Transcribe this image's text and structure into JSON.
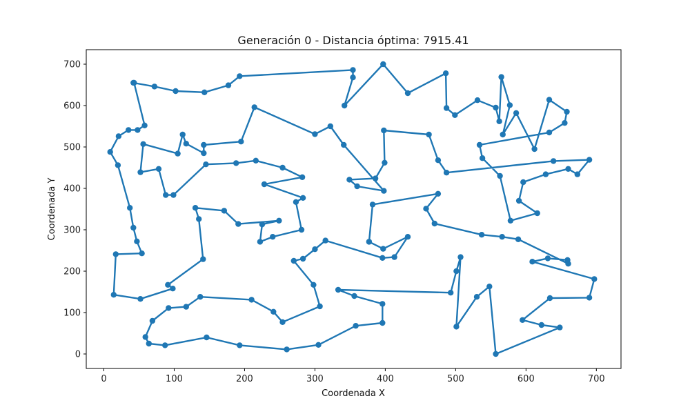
{
  "chart_data": {
    "type": "line",
    "title": "Generación 0 - Distancia óptima: 7915.41",
    "xlabel": "Coordenada X",
    "ylabel": "Coordenada Y",
    "xlim": [
      -25,
      735
    ],
    "ylim": [
      -35,
      735
    ],
    "xticks": [
      0,
      100,
      200,
      300,
      400,
      500,
      600,
      700
    ],
    "yticks": [
      0,
      100,
      200,
      300,
      400,
      500,
      600,
      700
    ],
    "grid": false,
    "legend": "none",
    "color": "#1f77b4",
    "series": [
      {
        "marker": "circle",
        "points": [
          [
            42,
            655
          ],
          [
            72,
            646
          ],
          [
            102,
            635
          ],
          [
            143,
            632
          ],
          [
            177,
            649
          ],
          [
            193,
            671
          ],
          [
            354,
            686
          ],
          [
            354,
            668
          ],
          [
            342,
            600
          ],
          [
            397,
            700
          ],
          [
            432,
            630
          ],
          [
            486,
            678
          ],
          [
            487,
            594
          ],
          [
            499,
            577
          ],
          [
            531,
            613
          ],
          [
            557,
            595
          ],
          [
            562,
            562
          ],
          [
            565,
            669
          ],
          [
            577,
            601
          ],
          [
            567,
            530
          ],
          [
            586,
            582
          ],
          [
            612,
            495
          ],
          [
            633,
            614
          ],
          [
            658,
            585
          ],
          [
            655,
            558
          ],
          [
            633,
            535
          ],
          [
            534,
            505
          ],
          [
            538,
            473
          ],
          [
            563,
            430
          ],
          [
            578,
            322
          ],
          [
            616,
            340
          ],
          [
            590,
            370
          ],
          [
            596,
            415
          ],
          [
            628,
            434
          ],
          [
            660,
            447
          ],
          [
            673,
            434
          ],
          [
            690,
            469
          ],
          [
            639,
            466
          ],
          [
            487,
            438
          ],
          [
            475,
            468
          ],
          [
            462,
            530
          ],
          [
            398,
            540
          ],
          [
            399,
            462
          ],
          [
            386,
            424
          ],
          [
            349,
            421
          ],
          [
            360,
            405
          ],
          [
            398,
            394
          ],
          [
            341,
            505
          ],
          [
            322,
            550
          ],
          [
            300,
            531
          ],
          [
            214,
            596
          ],
          [
            195,
            513
          ],
          [
            142,
            505
          ],
          [
            142,
            485
          ],
          [
            117,
            508
          ],
          [
            112,
            530
          ],
          [
            105,
            484
          ],
          [
            56,
            507
          ],
          [
            52,
            439
          ],
          [
            78,
            447
          ],
          [
            88,
            384
          ],
          [
            99,
            384
          ],
          [
            145,
            458
          ],
          [
            188,
            461
          ],
          [
            216,
            467
          ],
          [
            254,
            450
          ],
          [
            282,
            427
          ],
          [
            228,
            410
          ],
          [
            283,
            377
          ],
          [
            273,
            367
          ],
          [
            281,
            300
          ],
          [
            240,
            283
          ],
          [
            222,
            271
          ],
          [
            225,
            313
          ],
          [
            249,
            322
          ],
          [
            191,
            314
          ],
          [
            171,
            346
          ],
          [
            130,
            353
          ],
          [
            135,
            326
          ],
          [
            141,
            229
          ],
          [
            91,
            167
          ],
          [
            98,
            158
          ],
          [
            52,
            133
          ],
          [
            14,
            143
          ],
          [
            17,
            241
          ],
          [
            54,
            243
          ],
          [
            47,
            272
          ],
          [
            42,
            305
          ],
          [
            37,
            353
          ],
          [
            20,
            456
          ],
          [
            9,
            488
          ],
          [
            21,
            526
          ],
          [
            35,
            541
          ],
          [
            48,
            541
          ],
          [
            58,
            552
          ],
          [
            43,
            655
          ]
        ]
      },
      {
        "marker": "circle",
        "points": [
          [
            377,
            271
          ],
          [
            397,
            254
          ],
          [
            432,
            283
          ],
          [
            413,
            234
          ],
          [
            396,
            232
          ],
          [
            315,
            274
          ],
          [
            300,
            253
          ],
          [
            283,
            230
          ],
          [
            270,
            225
          ],
          [
            298,
            167
          ],
          [
            307,
            115
          ],
          [
            254,
            77
          ],
          [
            241,
            102
          ],
          [
            210,
            131
          ],
          [
            137,
            138
          ],
          [
            117,
            114
          ],
          [
            92,
            111
          ],
          [
            69,
            80
          ],
          [
            59,
            41
          ],
          [
            64,
            25
          ],
          [
            87,
            21
          ],
          [
            146,
            40
          ],
          [
            193,
            21
          ],
          [
            260,
            11
          ],
          [
            305,
            22
          ],
          [
            358,
            68
          ],
          [
            396,
            75
          ],
          [
            396,
            121
          ],
          [
            356,
            140
          ],
          [
            333,
            155
          ],
          [
            493,
            148
          ],
          [
            501,
            200
          ],
          [
            507,
            234
          ],
          [
            501,
            66
          ],
          [
            530,
            138
          ],
          [
            548,
            163
          ],
          [
            557,
            0
          ],
          [
            648,
            64
          ],
          [
            622,
            70
          ],
          [
            595,
            82
          ],
          [
            634,
            135
          ],
          [
            690,
            136
          ],
          [
            697,
            181
          ],
          [
            609,
            223
          ],
          [
            631,
            231
          ],
          [
            659,
            227
          ],
          [
            660,
            218
          ],
          [
            589,
            277
          ],
          [
            566,
            283
          ],
          [
            537,
            288
          ],
          [
            470,
            315
          ],
          [
            458,
            351
          ],
          [
            475,
            387
          ],
          [
            382,
            361
          ],
          [
            377,
            271
          ]
        ]
      }
    ]
  }
}
